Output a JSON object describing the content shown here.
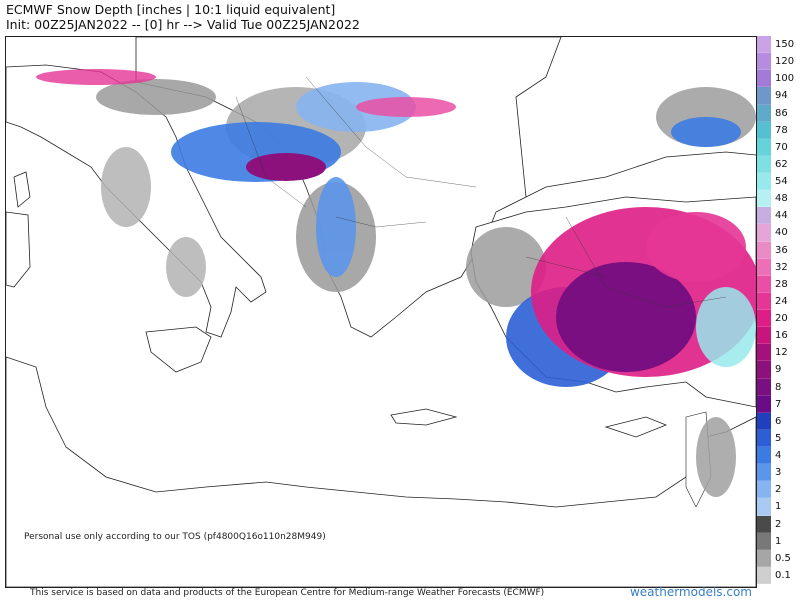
{
  "header": {
    "title": "ECMWF Snow Depth [inches | 10:1 liquid equivalent]",
    "subtitle": "Init: 00Z25JAN2022 -- [0] hr --> Valid Tue 00Z25JAN2022"
  },
  "map": {
    "region": "Central/Eastern Mediterranean, Balkans, Turkey",
    "disclaimer": "Personal use only according to our TOS (pf4800Q16o110n28M949)"
  },
  "footer": {
    "source_text": "This service is based on data and products of the European Centre for Medium-range Weather Forecasts (ECMWF)",
    "brand": "weathermodels.com"
  },
  "legend": {
    "entries": [
      {
        "label": "150",
        "color": "#c9a3e6"
      },
      {
        "label": "120",
        "color": "#b68cdf"
      },
      {
        "label": "100",
        "color": "#a37ad6"
      },
      {
        "label": "94",
        "color": "#6e98c9"
      },
      {
        "label": "86",
        "color": "#5fa9c9"
      },
      {
        "label": "78",
        "color": "#55c0cf"
      },
      {
        "label": "70",
        "color": "#66d3da"
      },
      {
        "label": "62",
        "color": "#7fe0e4"
      },
      {
        "label": "54",
        "color": "#98e9eb"
      },
      {
        "label": "48",
        "color": "#b6f0f2"
      },
      {
        "label": "44",
        "color": "#c6aee0"
      },
      {
        "label": "40",
        "color": "#e3a6d6"
      },
      {
        "label": "36",
        "color": "#e98cc6"
      },
      {
        "label": "32",
        "color": "#ec6fb7"
      },
      {
        "label": "28",
        "color": "#ea4fa5"
      },
      {
        "label": "24",
        "color": "#e53596"
      },
      {
        "label": "20",
        "color": "#de1e86"
      },
      {
        "label": "16",
        "color": "#c8147c"
      },
      {
        "label": "12",
        "color": "#a5117a"
      },
      {
        "label": "9",
        "color": "#8c117d"
      },
      {
        "label": "8",
        "color": "#7a0f82"
      },
      {
        "label": "7",
        "color": "#6a0c88"
      },
      {
        "label": "6",
        "color": "#1f3fbf"
      },
      {
        "label": "5",
        "color": "#2c5fd6"
      },
      {
        "label": "4",
        "color": "#3c7be2"
      },
      {
        "label": "3",
        "color": "#5c96ea"
      },
      {
        "label": "2",
        "color": "#86b4f0"
      },
      {
        "label": "1",
        "color": "#a9cbf3"
      },
      {
        "label": "2",
        "color": "#4a4a4a"
      },
      {
        "label": "1",
        "color": "#787878"
      },
      {
        "label": "0.5",
        "color": "#a6a6a6"
      },
      {
        "label": "0.1",
        "color": "#cfcfcf"
      }
    ]
  }
}
